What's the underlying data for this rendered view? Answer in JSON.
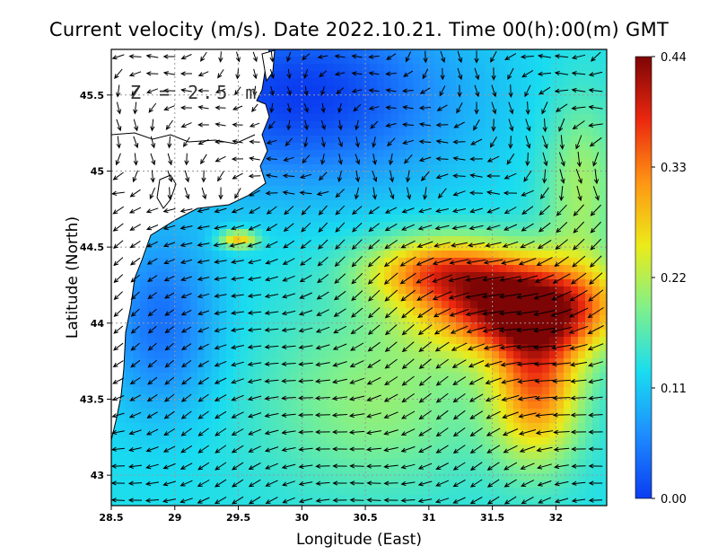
{
  "chart_data": {
    "type": "heatmap",
    "title": "Current velocity (m/s). Date 2022.10.21. Time 00(h):00(m) GMT",
    "xlabel": "Longitude (East)",
    "ylabel": "Latitude (North)",
    "annotation": "Z = 2.5 m",
    "xlim": [
      28.5,
      32.4
    ],
    "ylim": [
      42.8,
      45.8
    ],
    "x_ticks": [
      "28.5",
      "29",
      "29.5",
      "30",
      "30.5",
      "31",
      "31.5",
      "32"
    ],
    "x_tick_values": [
      28.5,
      29,
      29.5,
      30,
      30.5,
      31,
      31.5,
      32
    ],
    "y_ticks": [
      "43",
      "43.5",
      "44",
      "44.5",
      "45",
      "45.5"
    ],
    "y_tick_values": [
      43,
      43.5,
      44,
      44.5,
      45,
      45.5
    ],
    "grid": true,
    "colorbar": {
      "min": 0.0,
      "max": 0.44,
      "ticks": [
        "0.44",
        "0.33",
        "0.22",
        "0.11",
        "0.00"
      ],
      "tick_values": [
        0.44,
        0.33,
        0.22,
        0.11,
        0.0
      ],
      "colormap": [
        "#0a3cf0",
        "#1e8cff",
        "#19dcf0",
        "#7ff08c",
        "#ebeb19",
        "#ff9614",
        "#eb280f",
        "#7d0505"
      ]
    },
    "field_description_points": [
      {
        "lon": 31.8,
        "lat": 44.1,
        "speed": 0.44
      },
      {
        "lon": 31.2,
        "lat": 44.3,
        "speed": 0.38
      },
      {
        "lon": 31.9,
        "lat": 43.6,
        "speed": 0.36
      },
      {
        "lon": 30.5,
        "lat": 43.6,
        "speed": 0.22
      },
      {
        "lon": 29.5,
        "lat": 43.2,
        "speed": 0.15
      },
      {
        "lon": 30.2,
        "lat": 45.4,
        "speed": 0.02
      },
      {
        "lon": 29.0,
        "lat": 44.0,
        "speed": 0.05
      }
    ]
  }
}
